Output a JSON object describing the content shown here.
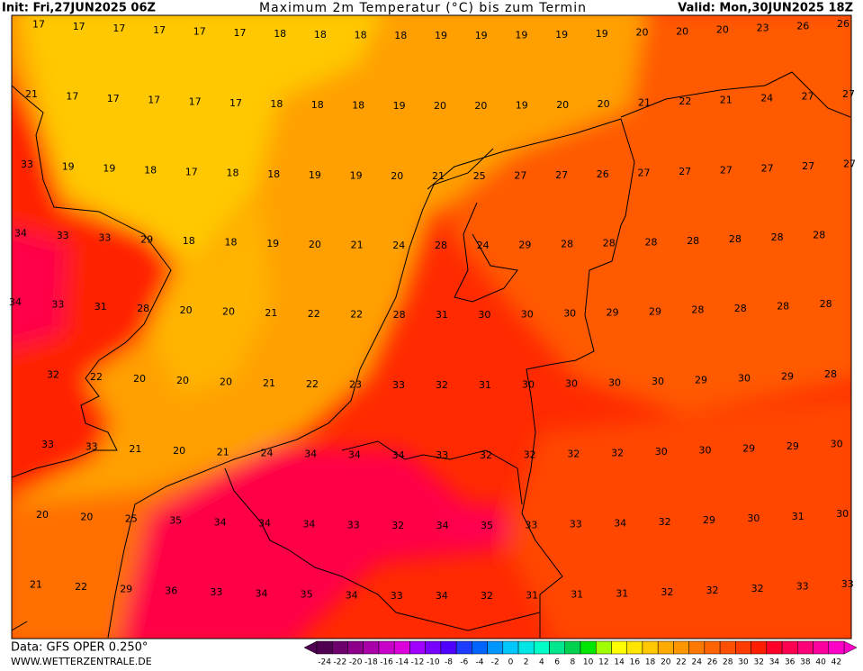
{
  "header": {
    "init": "Init: Fri,27JUN2025 06Z",
    "title": "Maximum 2m Temperatur (°C) bis zum Termin",
    "valid": "Valid: Mon,30JUN2025 18Z"
  },
  "temperature_rows": [
    [
      17,
      17,
      17,
      17,
      17,
      17,
      18,
      18,
      18,
      18,
      19,
      19,
      19,
      19,
      19,
      20,
      20,
      20,
      23,
      26,
      26
    ],
    [
      21,
      17,
      17,
      17,
      17,
      17,
      18,
      18,
      18,
      19,
      20,
      20,
      19,
      20,
      20,
      21,
      22,
      21,
      24,
      27,
      27
    ],
    [
      33,
      19,
      19,
      18,
      17,
      18,
      18,
      19,
      19,
      20,
      21,
      25,
      27,
      27,
      26,
      27,
      27,
      27,
      27,
      27,
      27
    ],
    [
      34,
      33,
      33,
      29,
      18,
      18,
      19,
      20,
      21,
      24,
      28,
      24,
      29,
      28,
      28,
      28,
      28,
      28,
      28,
      28
    ],
    [
      34,
      33,
      31,
      28,
      20,
      20,
      21,
      22,
      22,
      28,
      31,
      30,
      30,
      30,
      29,
      29,
      28,
      28,
      28,
      28
    ],
    [
      32,
      22,
      20,
      20,
      20,
      21,
      22,
      23,
      33,
      32,
      31,
      30,
      30,
      30,
      30,
      29,
      30,
      29,
      28
    ],
    [
      33,
      33,
      21,
      20,
      21,
      24,
      34,
      34,
      34,
      33,
      32,
      32,
      32,
      32,
      30,
      30,
      29,
      29,
      30
    ],
    [
      20,
      20,
      25,
      35,
      34,
      34,
      34,
      33,
      32,
      34,
      35,
      33,
      33,
      34,
      32,
      29,
      30,
      31,
      30
    ],
    [
      21,
      22,
      29,
      36,
      33,
      34,
      35,
      34,
      33,
      34,
      32,
      31,
      31,
      31,
      32,
      32,
      32,
      33,
      33
    ]
  ],
  "footer": {
    "data": "Data: GFS OPER 0.250°",
    "site": "WWW.WETTERZENTRALE.DE"
  },
  "scale": {
    "labels": [
      -24,
      -22,
      -20,
      -18,
      -16,
      -14,
      -12,
      -10,
      -8,
      -6,
      -4,
      -2,
      0,
      2,
      4,
      6,
      8,
      10,
      12,
      14,
      16,
      18,
      20,
      22,
      24,
      26,
      28,
      30,
      32,
      34,
      36,
      38,
      40,
      42
    ],
    "colors": [
      "#500050",
      "#6e006e",
      "#8c008c",
      "#aa00aa",
      "#c800c8",
      "#dc00dc",
      "#a000ff",
      "#7800ff",
      "#5000ff",
      "#1e3cff",
      "#0064ff",
      "#0096ff",
      "#00c8ff",
      "#00e6e6",
      "#00ffc8",
      "#00e68c",
      "#00d250",
      "#00e600",
      "#a0ff00",
      "#ffff00",
      "#ffe600",
      "#ffc800",
      "#ffaa00",
      "#ff9600",
      "#ff7800",
      "#ff6400",
      "#ff5000",
      "#ff3c00",
      "#ff1e00",
      "#ff0028",
      "#ff0050",
      "#ff0078",
      "#ff00a0",
      "#ff00c8"
    ]
  }
}
